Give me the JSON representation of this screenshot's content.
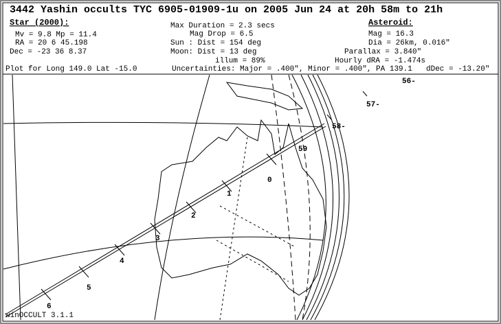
{
  "header": {
    "title": "3442 Yashin occults TYC 6905-01909-1u on 2005 Jun 24 at 20h 58m to 21h",
    "star": {
      "heading": "Star (2000):",
      "lines": [
        "Mv = 9.8   Mp = 11.4",
        "RA  =  20  6 45.198",
        "Dec = -23 36  8.37"
      ]
    },
    "event": {
      "lines": [
        "Max Duration = 2.3 secs",
        "Mag Drop =  6.5",
        "Sun :   Dist = 154 deg",
        "Moon:   Dist = 13 deg",
        "illum = 89%"
      ]
    },
    "asteroid": {
      "heading": "Asteroid:",
      "lines": [
        "Mag = 16.3",
        "Dia = 26km, 0.016\"",
        "Parallax = 3.840\"",
        "Hourly dRA = -1.474s",
        "dDec = -13.20\""
      ]
    },
    "plot_location": "Plot for Long 149.0  Lat -15.0",
    "uncertainties": "Uncertainties: Major = .400\", Minor = .400\", PA 139.1"
  },
  "map": {
    "path_labels": [
      "0",
      "1",
      "2",
      "3",
      "4",
      "5",
      "6",
      "56-",
      "57-",
      "58-",
      "59"
    ]
  },
  "footer": "winOCCULT 3.1.1"
}
